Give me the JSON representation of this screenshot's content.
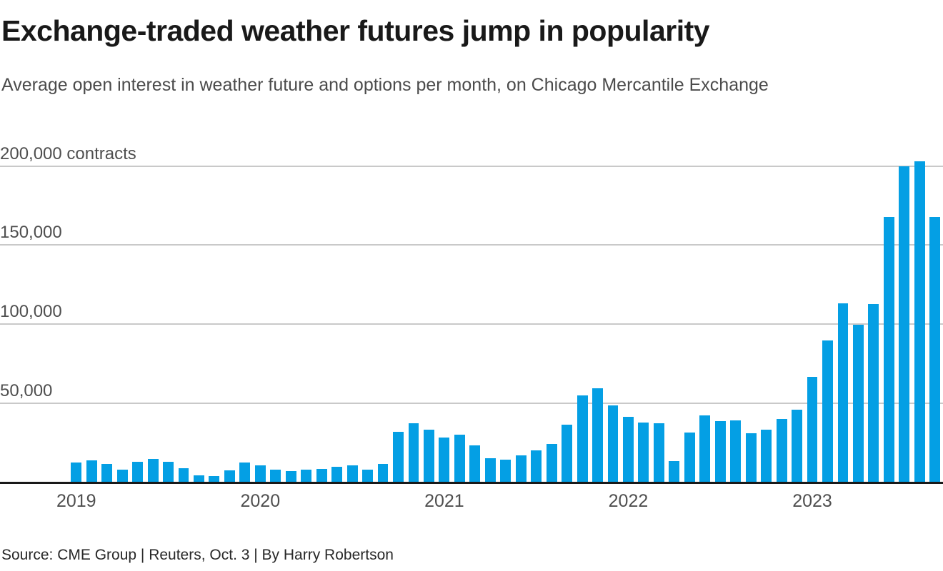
{
  "header": {
    "title": "Exchange-traded weather futures jump in popularity",
    "subtitle": "Average open interest in weather future and options per month, on Chicago Mercantile Exchange"
  },
  "footer": {
    "source": "Source: CME Group | Reuters, Oct. 3 | By Harry Robertson"
  },
  "chart_data": {
    "type": "bar",
    "title": "Exchange-traded weather futures jump in popularity",
    "subtitle": "Average open interest in weather future and options per month, on Chicago Mercantile Exchange",
    "unit": "contracts",
    "bar_color": "#049fe4",
    "grid": "horizontal",
    "legend": "none",
    "ylim": [
      0,
      210000
    ],
    "y_ticks": [
      {
        "value": 50000,
        "label": "50,000"
      },
      {
        "value": 100000,
        "label": "100,000"
      },
      {
        "value": 150000,
        "label": "150,000"
      },
      {
        "value": 200000,
        "label": "200,000 contracts"
      }
    ],
    "x_start_month": "2019-01",
    "x_end_month": "2023-09",
    "x_year_labels": [
      "2019",
      "2020",
      "2021",
      "2022",
      "2023"
    ],
    "monthly_values": [
      12300,
      13400,
      11400,
      7600,
      12800,
      14400,
      12600,
      8700,
      4200,
      3500,
      7200,
      12400,
      10500,
      7500,
      6600,
      7800,
      8100,
      9300,
      10400,
      7800,
      11300,
      31600,
      36800,
      33100,
      28100,
      29700,
      23000,
      14700,
      13800,
      16800,
      20000,
      24100,
      35900,
      54500,
      59200,
      48200,
      41000,
      37500,
      37000,
      13200,
      31300,
      42000,
      38300,
      39000,
      30500,
      33000,
      39800,
      45600,
      66400,
      89300,
      112600,
      99200,
      112300,
      167500,
      199400,
      202400,
      167500
    ]
  }
}
